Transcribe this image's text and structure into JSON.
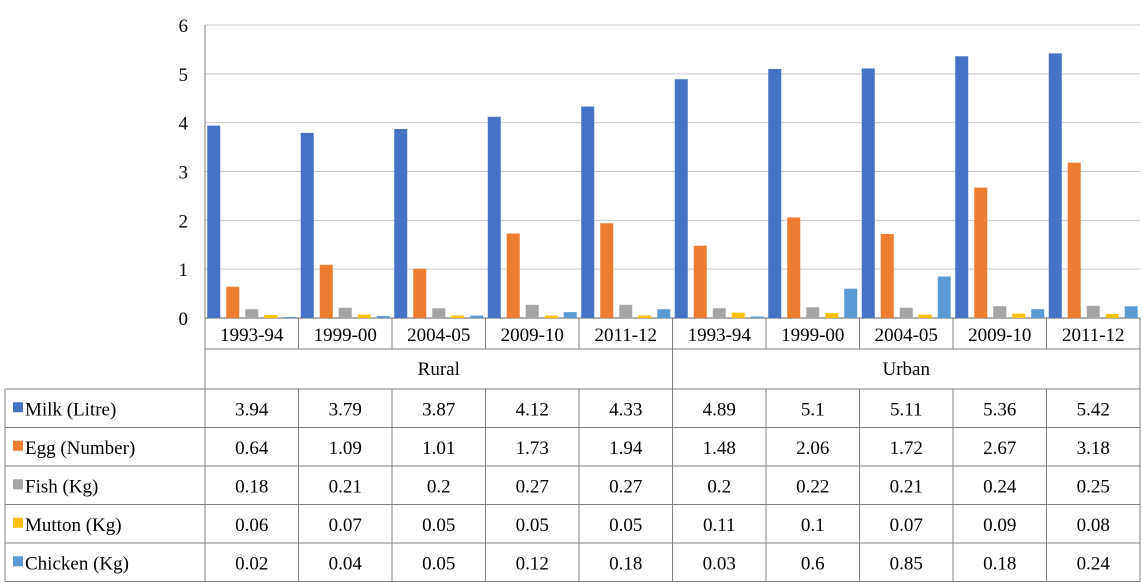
{
  "chart_data": {
    "type": "bar",
    "ylim": [
      0,
      6
    ],
    "yticks": [
      "0",
      "1",
      "2",
      "3",
      "4",
      "5",
      "6"
    ],
    "groups": [
      "Rural",
      "Urban"
    ],
    "categories": [
      "1993-94",
      "1999-00",
      "2004-05",
      "2009-10",
      "2011-12",
      "1993-94",
      "1999-00",
      "2004-05",
      "2009-10",
      "2011-12"
    ],
    "series": [
      {
        "name": "Milk (Litre)",
        "color": "#4472c4",
        "values": [
          3.94,
          3.79,
          3.87,
          4.12,
          4.33,
          4.89,
          5.1,
          5.11,
          5.36,
          5.42
        ]
      },
      {
        "name": "Egg (Number)",
        "color": "#ed7d31",
        "values": [
          0.64,
          1.09,
          1.01,
          1.73,
          1.94,
          1.48,
          2.06,
          1.72,
          2.67,
          3.18
        ]
      },
      {
        "name": "Fish (Kg)",
        "color": "#a5a5a5",
        "values": [
          0.18,
          0.21,
          0.2,
          0.27,
          0.27,
          0.2,
          0.22,
          0.21,
          0.24,
          0.25
        ]
      },
      {
        "name": "Mutton (Kg)",
        "color": "#ffc000",
        "values": [
          0.06,
          0.07,
          0.05,
          0.05,
          0.05,
          0.11,
          0.1,
          0.07,
          0.09,
          0.08
        ]
      },
      {
        "name": "Chicken (Kg)",
        "color": "#5b9bd5",
        "values": [
          0.02,
          0.04,
          0.05,
          0.12,
          0.18,
          0.03,
          0.6,
          0.85,
          0.18,
          0.24
        ]
      }
    ],
    "grid": true,
    "legend": "data-table"
  },
  "table_values": [
    [
      "3.94",
      "3.79",
      "3.87",
      "4.12",
      "4.33",
      "4.89",
      "5.1",
      "5.11",
      "5.36",
      "5.42"
    ],
    [
      "0.64",
      "1.09",
      "1.01",
      "1.73",
      "1.94",
      "1.48",
      "2.06",
      "1.72",
      "2.67",
      "3.18"
    ],
    [
      "0.18",
      "0.21",
      "0.2",
      "0.27",
      "0.27",
      "0.2",
      "0.22",
      "0.21",
      "0.24",
      "0.25"
    ],
    [
      "0.06",
      "0.07",
      "0.05",
      "0.05",
      "0.05",
      "0.11",
      "0.1",
      "0.07",
      "0.09",
      "0.08"
    ],
    [
      "0.02",
      "0.04",
      "0.05",
      "0.12",
      "0.18",
      "0.03",
      "0.6",
      "0.85",
      "0.18",
      "0.24"
    ]
  ]
}
